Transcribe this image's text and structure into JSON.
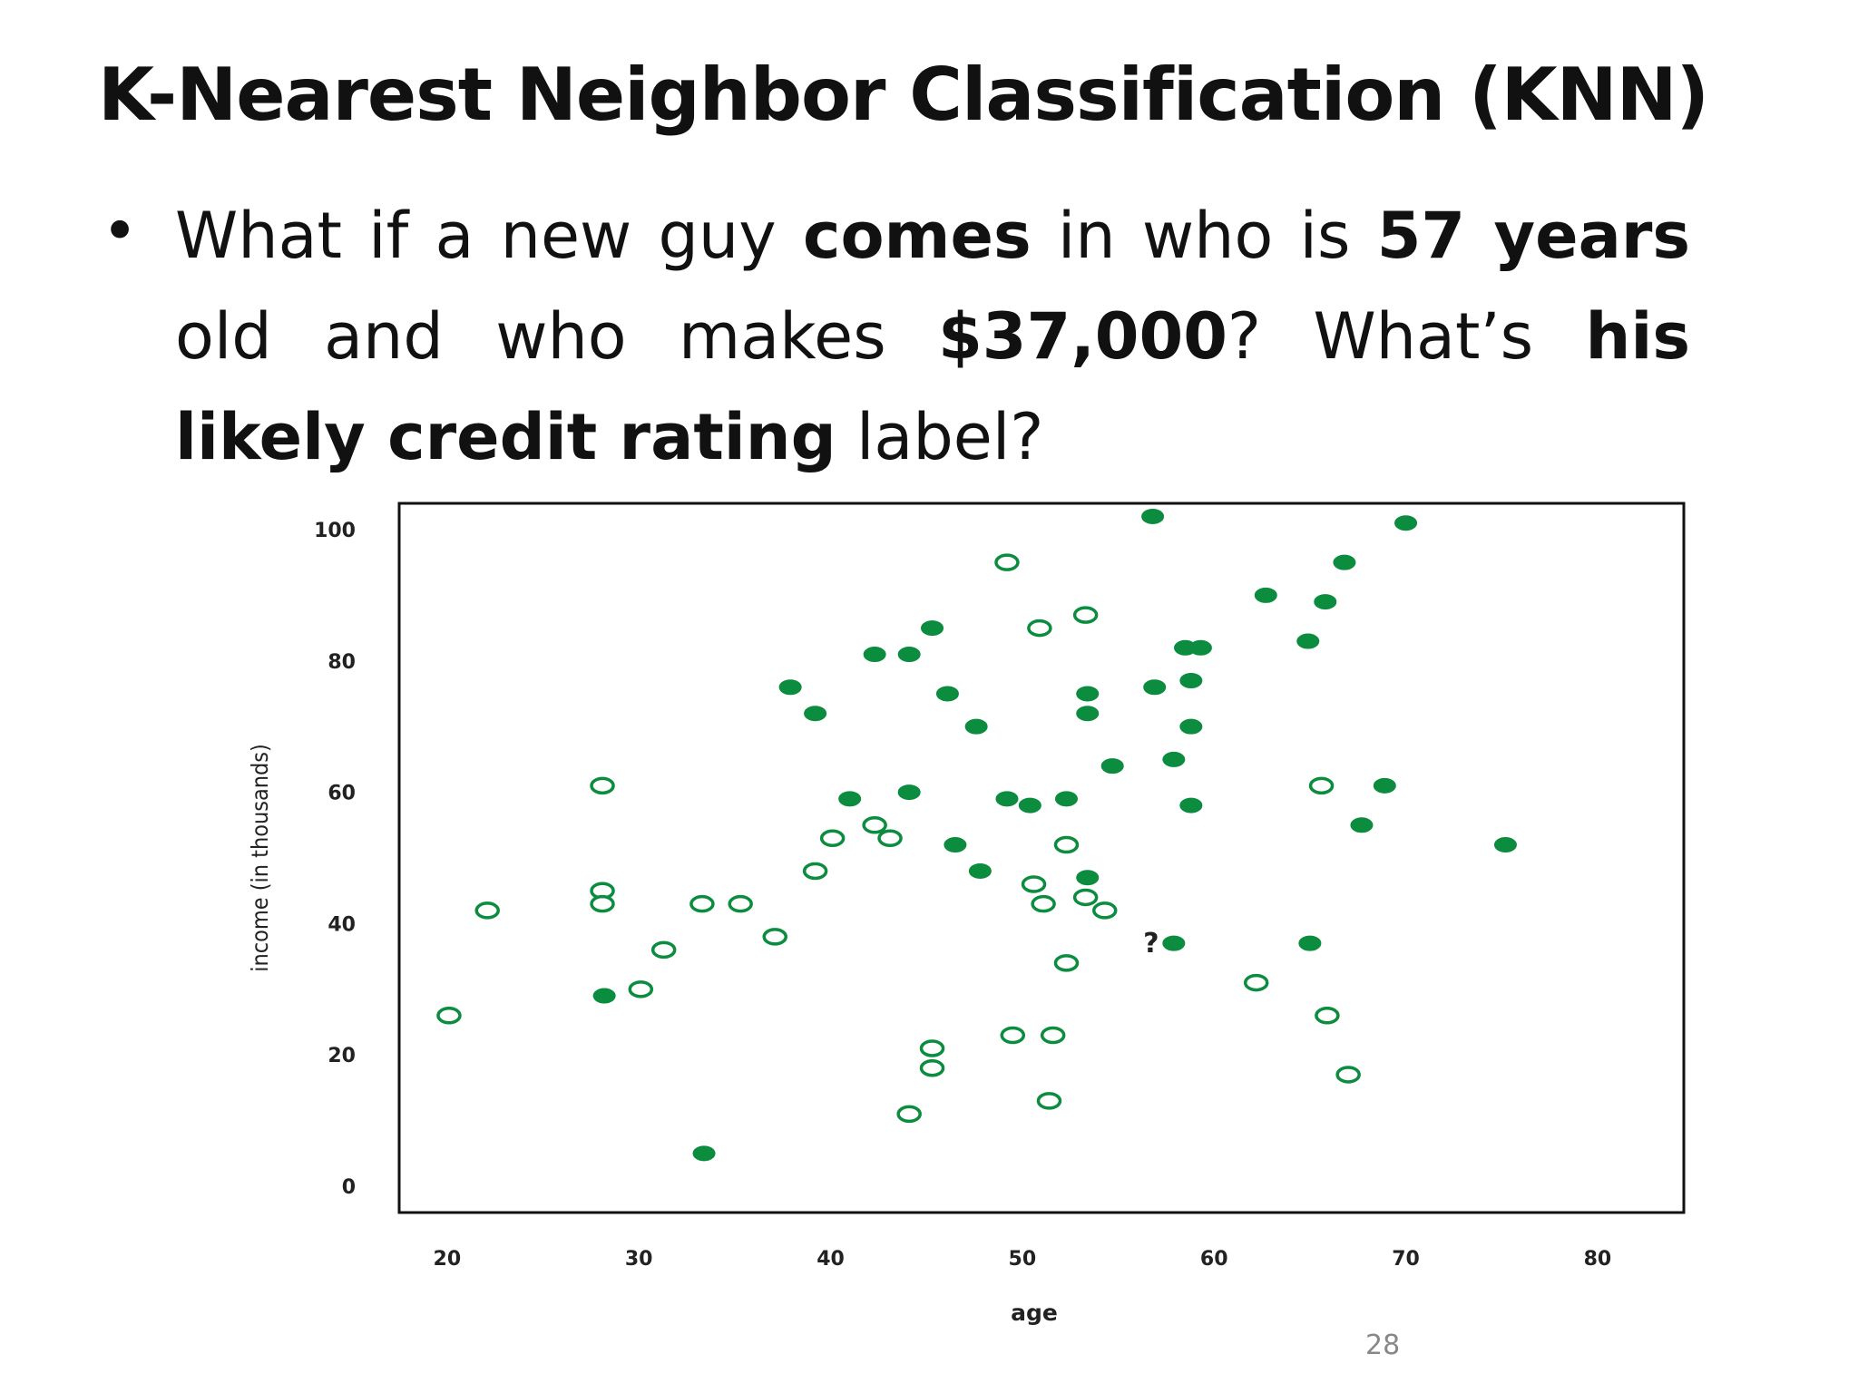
{
  "slide": {
    "title": "K-Nearest Neighbor Classification (KNN)",
    "bullet_symbol": "•",
    "bullet_parts": [
      {
        "text": "What if a new guy ",
        "bold": false
      },
      {
        "text": "comes",
        "bold": true
      },
      {
        "text": " in who is ",
        "bold": false
      },
      {
        "text": "57 years",
        "bold": true
      },
      {
        "text": " old and who makes ",
        "bold": false
      },
      {
        "text": "$37,000",
        "bold": true
      },
      {
        "text": "? What’s ",
        "bold": false
      },
      {
        "text": "his likely credit rating",
        "bold": true
      },
      {
        "text": " label?",
        "bold": false
      }
    ],
    "page_number": "28"
  },
  "chart_data": {
    "type": "scatter",
    "title": "",
    "xlabel": "age",
    "ylabel": "income (in thousands)",
    "xlim": [
      17.5,
      84.5
    ],
    "ylim": [
      -4,
      104
    ],
    "xticks": [
      20,
      30,
      40,
      50,
      60,
      70,
      80
    ],
    "yticks": [
      0,
      20,
      40,
      60,
      80,
      100
    ],
    "grid": false,
    "legend": "none",
    "colors": {
      "marker": "#0b8c3e",
      "frame": "#111111",
      "query": "#111111"
    },
    "query_point": {
      "label": "?",
      "x": 57,
      "y": 37
    },
    "series": [
      {
        "marker": "filled",
        "points": [
          [
            56.8,
            102
          ],
          [
            70,
            101
          ],
          [
            66.8,
            95
          ],
          [
            62.7,
            90
          ],
          [
            65.8,
            89
          ],
          [
            45.3,
            85
          ],
          [
            42.3,
            81
          ],
          [
            44.1,
            81
          ],
          [
            58.5,
            82
          ],
          [
            59.3,
            82
          ],
          [
            64.9,
            83
          ],
          [
            37.9,
            76
          ],
          [
            46.1,
            75
          ],
          [
            53.4,
            75
          ],
          [
            56.9,
            76
          ],
          [
            58.8,
            77
          ],
          [
            39.2,
            72
          ],
          [
            47.6,
            70
          ],
          [
            53.4,
            72
          ],
          [
            58.8,
            70
          ],
          [
            54.7,
            64
          ],
          [
            57.9,
            65
          ],
          [
            44.1,
            60
          ],
          [
            41,
            59
          ],
          [
            49.2,
            59
          ],
          [
            50.4,
            58
          ],
          [
            52.3,
            59
          ],
          [
            58.8,
            58
          ],
          [
            68.9,
            61
          ],
          [
            67.7,
            55
          ],
          [
            75.2,
            52
          ],
          [
            46.5,
            52
          ],
          [
            47.8,
            48
          ],
          [
            53.4,
            47
          ],
          [
            57.9,
            37
          ],
          [
            65,
            37
          ],
          [
            28.2,
            29
          ],
          [
            33.4,
            5
          ]
        ]
      },
      {
        "marker": "hollow",
        "points": [
          [
            49.2,
            95
          ],
          [
            50.9,
            85
          ],
          [
            53.3,
            87
          ],
          [
            28.1,
            61
          ],
          [
            65.6,
            61
          ],
          [
            42.3,
            55
          ],
          [
            40.1,
            53
          ],
          [
            43.1,
            53
          ],
          [
            52.3,
            52
          ],
          [
            39.2,
            48
          ],
          [
            28.1,
            45
          ],
          [
            28.1,
            43
          ],
          [
            22.1,
            42
          ],
          [
            33.3,
            43
          ],
          [
            35.3,
            43
          ],
          [
            50.6,
            46
          ],
          [
            51.1,
            43
          ],
          [
            53.3,
            44
          ],
          [
            54.3,
            42
          ],
          [
            37.1,
            38
          ],
          [
            31.3,
            36
          ],
          [
            30.1,
            30
          ],
          [
            52.3,
            34
          ],
          [
            62.2,
            31
          ],
          [
            20.1,
            26
          ],
          [
            65.9,
            26
          ],
          [
            45.3,
            21
          ],
          [
            45.3,
            18
          ],
          [
            49.5,
            23
          ],
          [
            51.6,
            23
          ],
          [
            67,
            17
          ],
          [
            51.4,
            13
          ],
          [
            44.1,
            11
          ]
        ]
      }
    ]
  }
}
